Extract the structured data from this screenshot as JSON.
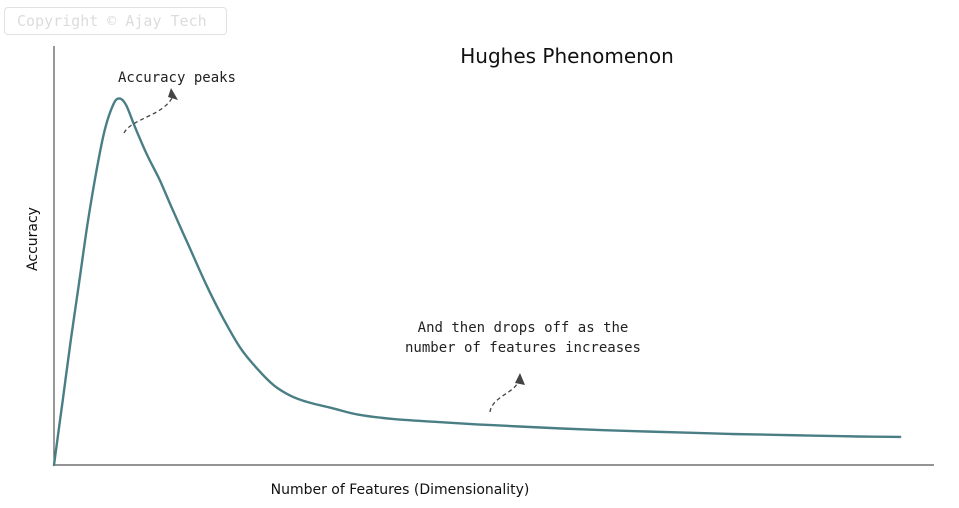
{
  "watermark": "Copyright © Ajay Tech",
  "chart_data": {
    "type": "line",
    "title": "Hughes Phenomenon",
    "xlabel": "Number of Features (Dimensionality)",
    "ylabel": "Accuracy",
    "ticks": "none",
    "grid": false,
    "series": [
      {
        "color": "#4a7e85",
        "points": [
          [
            0,
            0
          ],
          [
            1,
            15
          ],
          [
            2,
            30
          ],
          [
            3,
            44
          ],
          [
            4,
            58
          ],
          [
            5,
            70
          ],
          [
            6,
            80
          ],
          [
            7,
            86
          ],
          [
            7.7,
            87.5
          ],
          [
            8.5,
            86
          ],
          [
            9.5,
            81
          ],
          [
            11,
            74
          ],
          [
            12.5,
            68
          ],
          [
            14,
            61
          ],
          [
            16,
            52
          ],
          [
            18,
            43
          ],
          [
            20,
            35
          ],
          [
            22,
            28
          ],
          [
            24,
            23
          ],
          [
            26,
            19
          ],
          [
            28,
            16.5
          ],
          [
            30,
            15
          ],
          [
            33,
            13.5
          ],
          [
            36,
            12
          ],
          [
            40,
            11
          ],
          [
            45,
            10.3
          ],
          [
            50,
            9.7
          ],
          [
            55,
            9.2
          ],
          [
            60,
            8.7
          ],
          [
            65,
            8.3
          ],
          [
            70,
            8
          ],
          [
            75,
            7.7
          ],
          [
            80,
            7.4
          ],
          [
            85,
            7.2
          ],
          [
            90,
            7
          ],
          [
            95,
            6.8
          ],
          [
            100,
            6.7
          ]
        ]
      }
    ],
    "xlim": [
      0,
      104
    ],
    "ylim": [
      0,
      100
    ],
    "annotations": [
      {
        "text": "Accuracy peaks",
        "target_x": 7.7,
        "target_y": 87.5
      },
      {
        "lines": [
          "And then drops off as the",
          "number of features increases"
        ],
        "target_x": 51,
        "target_y": 9.5
      }
    ]
  }
}
